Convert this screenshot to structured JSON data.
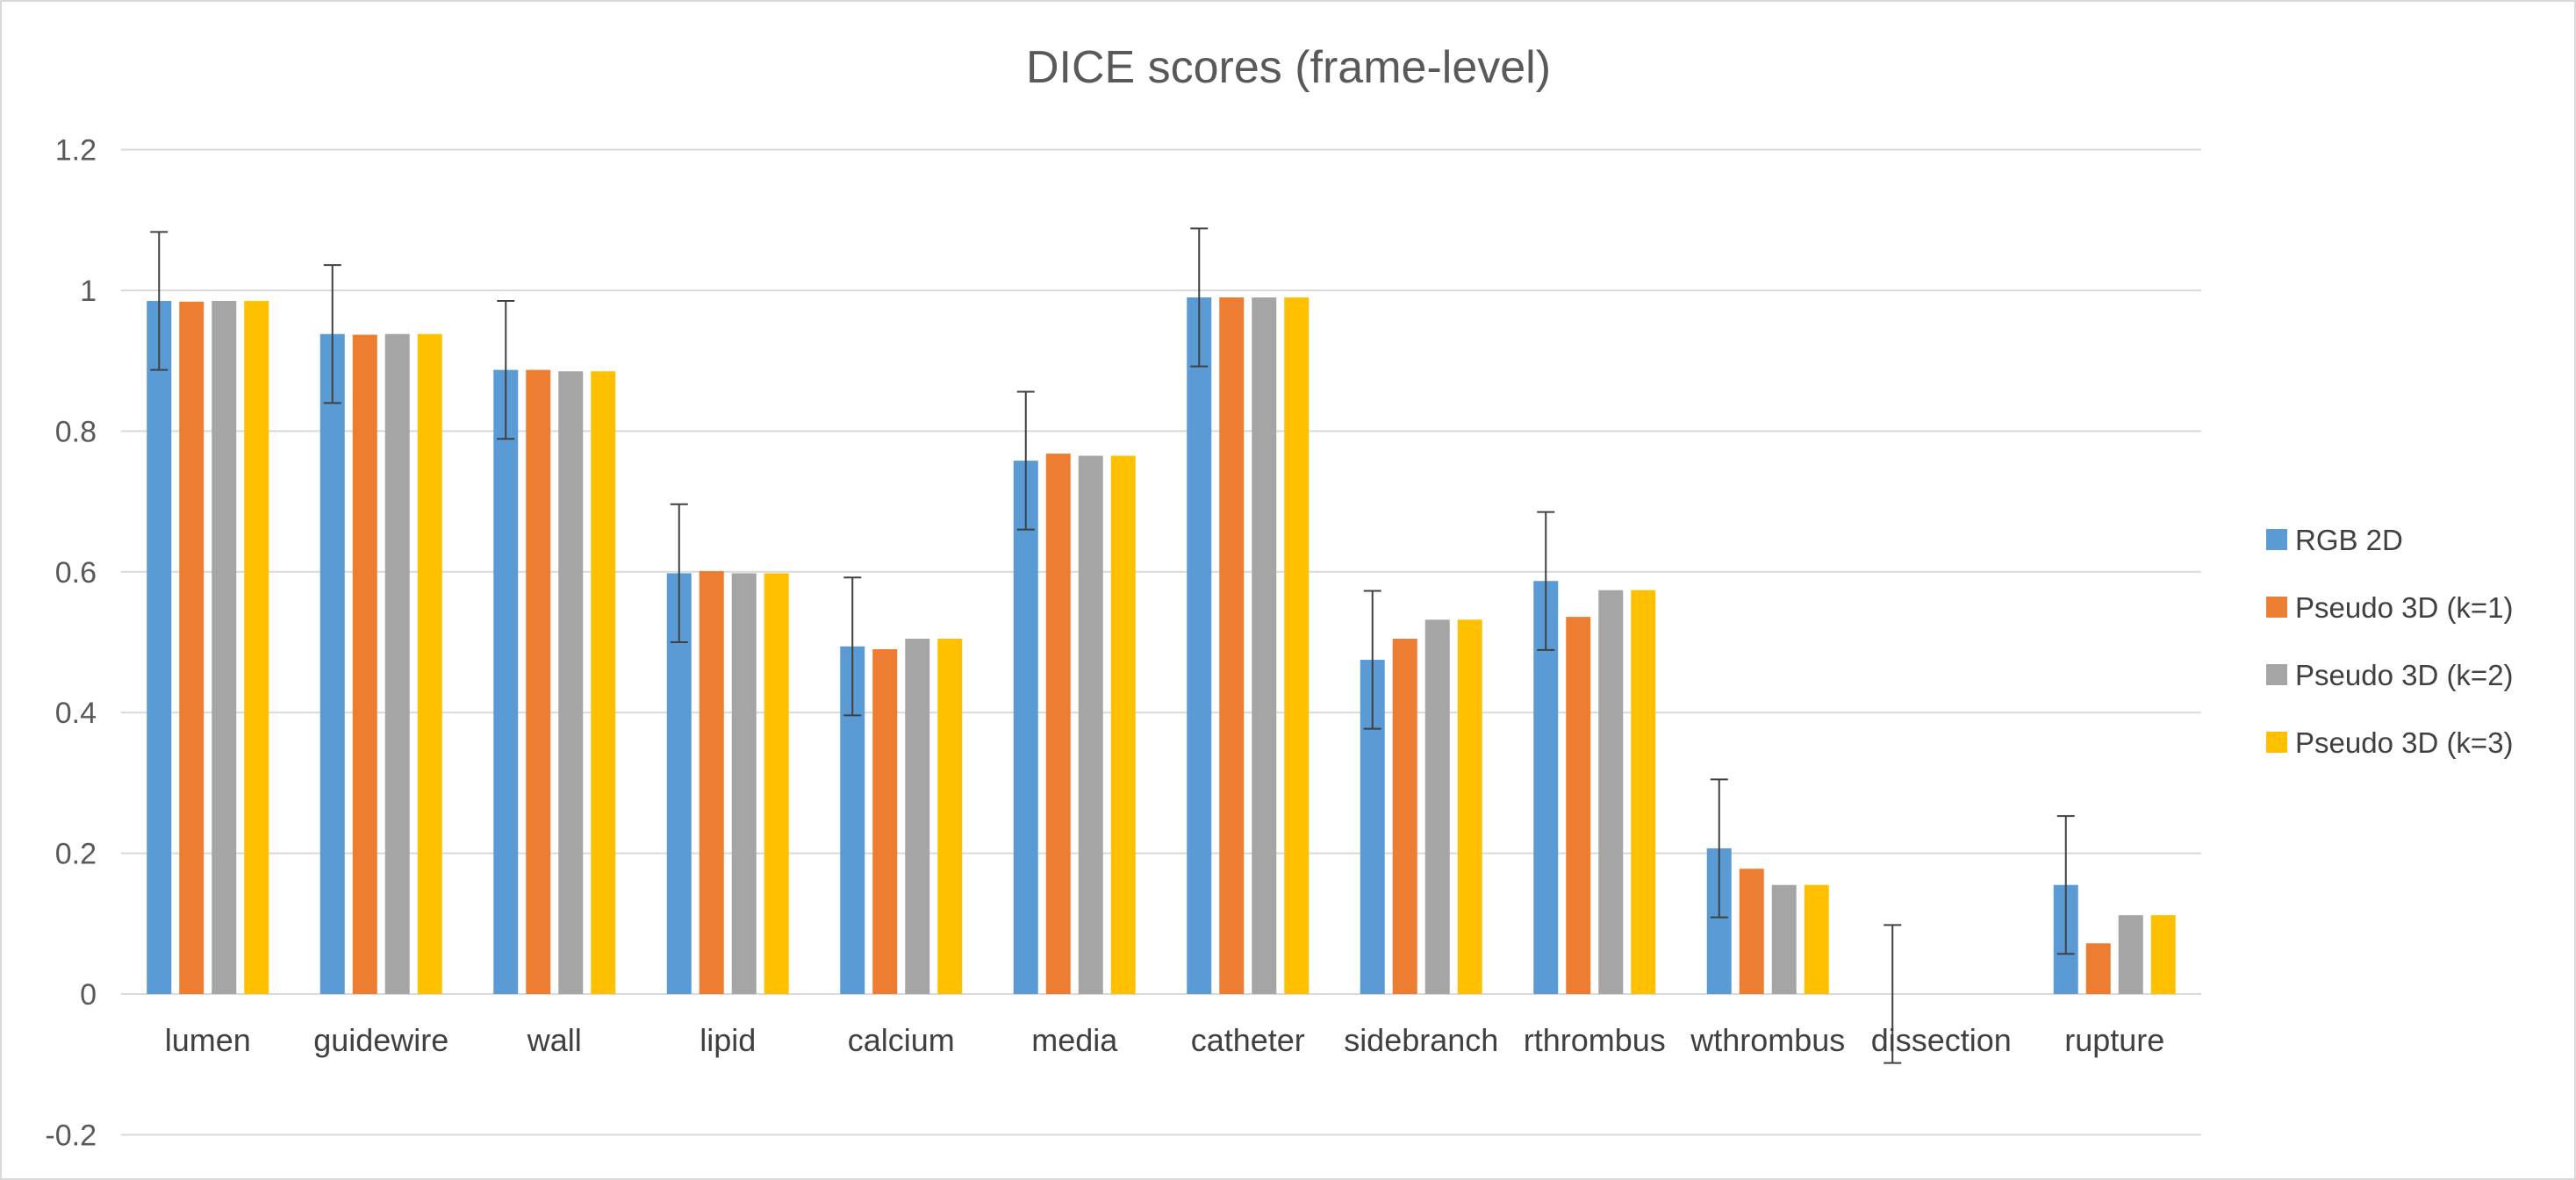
{
  "chart_data": {
    "type": "bar",
    "title": "DICE scores (frame-level)",
    "xlabel": "",
    "ylabel": "",
    "ylim": [
      -0.2,
      1.2
    ],
    "yticks": [
      -0.2,
      0,
      0.2,
      0.4,
      0.6,
      0.8,
      1,
      1.2
    ],
    "grid": true,
    "legend_position": "right",
    "categories": [
      "lumen",
      "guidewire",
      "wall",
      "lipid",
      "calcium",
      "media",
      "catheter",
      "sidebranch",
      "rthrombus",
      "wthrombus",
      "dissection",
      "rupture"
    ],
    "series": [
      {
        "name": "RGB 2D",
        "color": "#5b9bd5",
        "values": [
          0.985,
          0.938,
          0.887,
          0.598,
          0.494,
          0.758,
          0.99,
          0.475,
          0.587,
          0.207,
          0.0,
          0.155
        ],
        "error": [
          0.098,
          0.098,
          0.098,
          0.098,
          0.098,
          0.098,
          0.098,
          0.098,
          0.098,
          0.098,
          0.098,
          0.098
        ]
      },
      {
        "name": "Pseudo 3D (k=1)",
        "color": "#ed7d31",
        "values": [
          0.984,
          0.937,
          0.887,
          0.601,
          0.49,
          0.768,
          0.99,
          0.505,
          0.536,
          0.178,
          0.0,
          0.072
        ]
      },
      {
        "name": "Pseudo 3D (k=2)",
        "color": "#a5a5a5",
        "values": [
          0.985,
          0.938,
          0.885,
          0.598,
          0.505,
          0.765,
          0.99,
          0.532,
          0.574,
          0.155,
          0.0,
          0.112
        ]
      },
      {
        "name": "Pseudo 3D (k=3)",
        "color": "#ffc000",
        "values": [
          0.985,
          0.938,
          0.885,
          0.598,
          0.505,
          0.765,
          0.99,
          0.532,
          0.574,
          0.155,
          0.0,
          0.112
        ]
      }
    ]
  }
}
